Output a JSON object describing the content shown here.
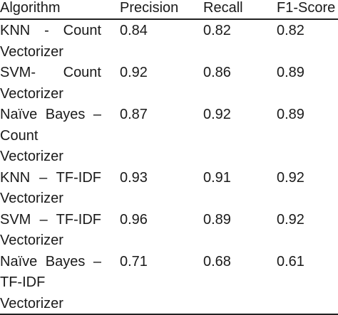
{
  "header": {
    "algorithm": "Algorithm",
    "precision": "Precision",
    "recall": "Recall",
    "f1": "F1-Score"
  },
  "rows": [
    {
      "algorithm_lines": [
        "KNN - Count",
        "Vectorizer"
      ],
      "precision": "0.84",
      "recall": "0.82",
      "f1": "0.82"
    },
    {
      "algorithm_lines": [
        "SVM- Count",
        "Vectorizer"
      ],
      "precision": "0.92",
      "recall": "0.86",
      "f1": "0.89"
    },
    {
      "algorithm_lines": [
        "Naïve Bayes –",
        "Count",
        "Vectorizer"
      ],
      "precision": "0.87",
      "recall": "0.92",
      "f1": "0.89"
    },
    {
      "algorithm_lines": [
        "KNN – TF-IDF",
        "Vectorizer"
      ],
      "precision": "0.93",
      "recall": "0.91",
      "f1": "0.92"
    },
    {
      "algorithm_lines": [
        "SVM – TF-IDF",
        "Vectorizer"
      ],
      "precision": "0.96",
      "recall": "0.89",
      "f1": "0.92"
    },
    {
      "algorithm_lines": [
        "Naïve Bayes –",
        "TF-IDF",
        "Vectorizer"
      ],
      "precision": "0.71",
      "recall": "0.68",
      "f1": "0.61"
    }
  ]
}
